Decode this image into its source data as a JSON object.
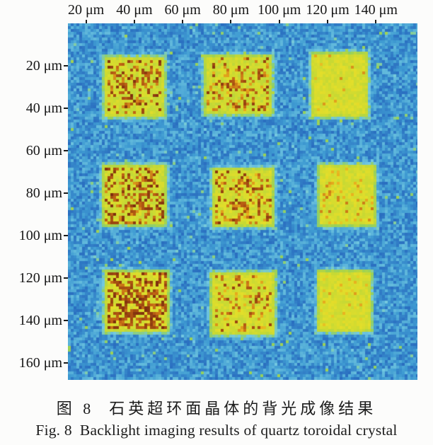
{
  "figure": {
    "caption_zh": "图 8  石英超环面晶体的背光成像结果",
    "caption_en": "Fig. 8  Backlight imaging results of quartz toroidal crystal"
  },
  "chart_data": {
    "type": "heatmap",
    "title": "",
    "colormap": "jet",
    "colormap_stops": [
      [
        0.0,
        "#1a4da6"
      ],
      [
        0.16,
        "#2a6ec0"
      ],
      [
        0.3,
        "#3f9bd2"
      ],
      [
        0.44,
        "#74c9e1"
      ],
      [
        0.52,
        "#93d05e"
      ],
      [
        0.62,
        "#c6d934"
      ],
      [
        0.7,
        "#e3de2a"
      ],
      [
        0.79,
        "#e9b01e"
      ],
      [
        0.88,
        "#c06414"
      ],
      [
        1.0,
        "#7c2d0e"
      ]
    ],
    "x_axis": {
      "unit": "μm",
      "range_um": [
        12.5,
        157.2
      ],
      "tick_um": [
        20,
        40,
        60,
        80,
        100,
        120,
        140
      ],
      "tick_labels": [
        "20 μm",
        "40 μm",
        "60 μm",
        "80 μm",
        "100 μm",
        "120 μm",
        "140 μm"
      ]
    },
    "y_axis": {
      "unit": "μm",
      "range_um": [
        0,
        168
      ],
      "tick_um": [
        20,
        40,
        60,
        80,
        100,
        120,
        140,
        160
      ],
      "tick_labels": [
        "20 μm",
        "40 μm",
        "60 μm",
        "80 μm",
        "100 μm",
        "120 μm",
        "140 μm",
        "160 μm"
      ]
    },
    "background": {
      "description": "speckled blue noise background",
      "value_range": [
        0.16,
        0.4
      ],
      "speck_chance": 0.02,
      "speck_value_range": [
        0.42,
        0.55
      ]
    },
    "features": [
      {
        "row": 1,
        "col": 1,
        "center_um": [
          40,
          30
        ],
        "half_size_um": [
          12.6,
          14.3
        ],
        "fill_value": 0.64,
        "spot_density": 0.42,
        "spot_value_range": [
          0.82,
          1.0
        ],
        "appearance": "yellow square with dense dark-red speckle cluster"
      },
      {
        "row": 1,
        "col": 2,
        "center_um": [
          83,
          29
        ],
        "half_size_um": [
          14.0,
          14.0
        ],
        "fill_value": 0.64,
        "spot_density": 0.38,
        "spot_value_range": [
          0.78,
          0.98
        ],
        "appearance": "yellow square with dark-red centre cluster"
      },
      {
        "row": 1,
        "col": 3,
        "center_um": [
          125,
          29
        ],
        "half_size_um": [
          11.7,
          15.0
        ],
        "fill_value": 0.66,
        "spot_density": 0.06,
        "spot_value_range": [
          0.74,
          0.84
        ],
        "appearance": "mostly uniform yellow square"
      },
      {
        "row": 2,
        "col": 1,
        "center_um": [
          40,
          81
        ],
        "half_size_um": [
          13.2,
          14.3
        ],
        "fill_value": 0.64,
        "spot_density": 0.52,
        "spot_value_range": [
          0.82,
          1.0
        ],
        "appearance": "yellow square with dense dark-red cluster"
      },
      {
        "row": 2,
        "col": 2,
        "center_um": [
          85,
          82
        ],
        "half_size_um": [
          12.6,
          13.7
        ],
        "fill_value": 0.65,
        "spot_density": 0.42,
        "spot_value_range": [
          0.78,
          0.98
        ],
        "appearance": "yellow square with orange-red centre"
      },
      {
        "row": 2,
        "col": 3,
        "center_um": [
          128,
          81
        ],
        "half_size_um": [
          11.7,
          14.3
        ],
        "fill_value": 0.66,
        "spot_density": 0.16,
        "spot_value_range": [
          0.74,
          0.86
        ],
        "appearance": "yellow square with scattered orange specks"
      },
      {
        "row": 3,
        "col": 1,
        "center_um": [
          41,
          131
        ],
        "half_size_um": [
          13.2,
          14.3
        ],
        "fill_value": 0.66,
        "spot_density": 0.72,
        "spot_value_range": [
          0.85,
          1.0
        ],
        "appearance": "strongest feature: dense dark-brown core"
      },
      {
        "row": 3,
        "col": 2,
        "center_um": [
          85,
          132
        ],
        "half_size_um": [
          13.2,
          14.7
        ],
        "fill_value": 0.65,
        "spot_density": 0.28,
        "spot_value_range": [
          0.76,
          0.96
        ],
        "appearance": "yellow square with scattered red specks"
      },
      {
        "row": 3,
        "col": 3,
        "center_um": [
          127,
          131
        ],
        "half_size_um": [
          11.1,
          14.3
        ],
        "fill_value": 0.66,
        "spot_density": 0.08,
        "spot_value_range": [
          0.72,
          0.82
        ],
        "appearance": "mostly uniform yellow square"
      }
    ]
  }
}
